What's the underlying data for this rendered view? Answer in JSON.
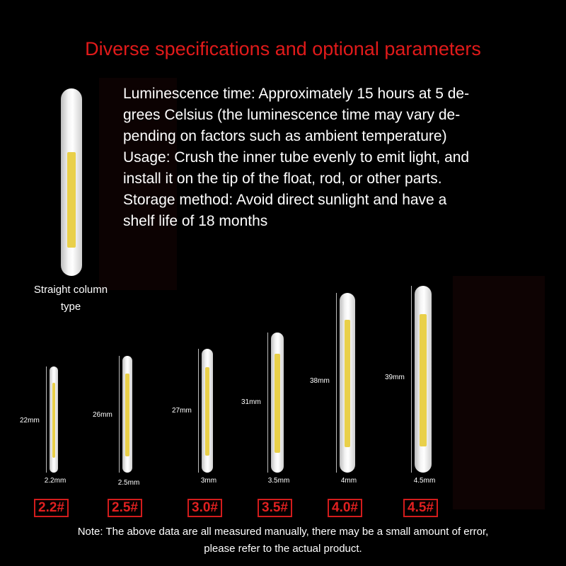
{
  "title": "Diverse specifications and optional parameters",
  "description_lines": [
    "Luminescence time: Approximately 15 hours at 5 de-",
    "grees Celsius (the luminescence time may vary de-",
    "pending on factors such as ambient temperature)",
    "Usage: Crush the inner tube evenly to emit light, and",
    "install it on the tip of the float, rod, or other parts.",
    "Storage method: Avoid direct sunlight and have a",
    "shelf life of 18 months"
  ],
  "straight_label": [
    "Straight column",
    "type"
  ],
  "colors": {
    "title": "#e11a1a",
    "badge": "#d21c1c",
    "glow_core": "#e9d04a"
  },
  "sizes": [
    {
      "badge": "2.2#",
      "length": "22mm",
      "diameter": "2.2mm"
    },
    {
      "badge": "2.5#",
      "length": "26mm",
      "diameter": "2.5mm"
    },
    {
      "badge": "3.0#",
      "length": "27mm",
      "diameter": "3mm"
    },
    {
      "badge": "3.5#",
      "length": "31mm",
      "diameter": "3.5mm"
    },
    {
      "badge": "4.0#",
      "length": "38mm",
      "diameter": "4mm"
    },
    {
      "badge": "4.5#",
      "length": "39mm",
      "diameter": "4.5mm"
    }
  ],
  "note": [
    "Note: The above data are all measured manually, there may be a small amount of error,",
    "please refer to the actual product."
  ]
}
